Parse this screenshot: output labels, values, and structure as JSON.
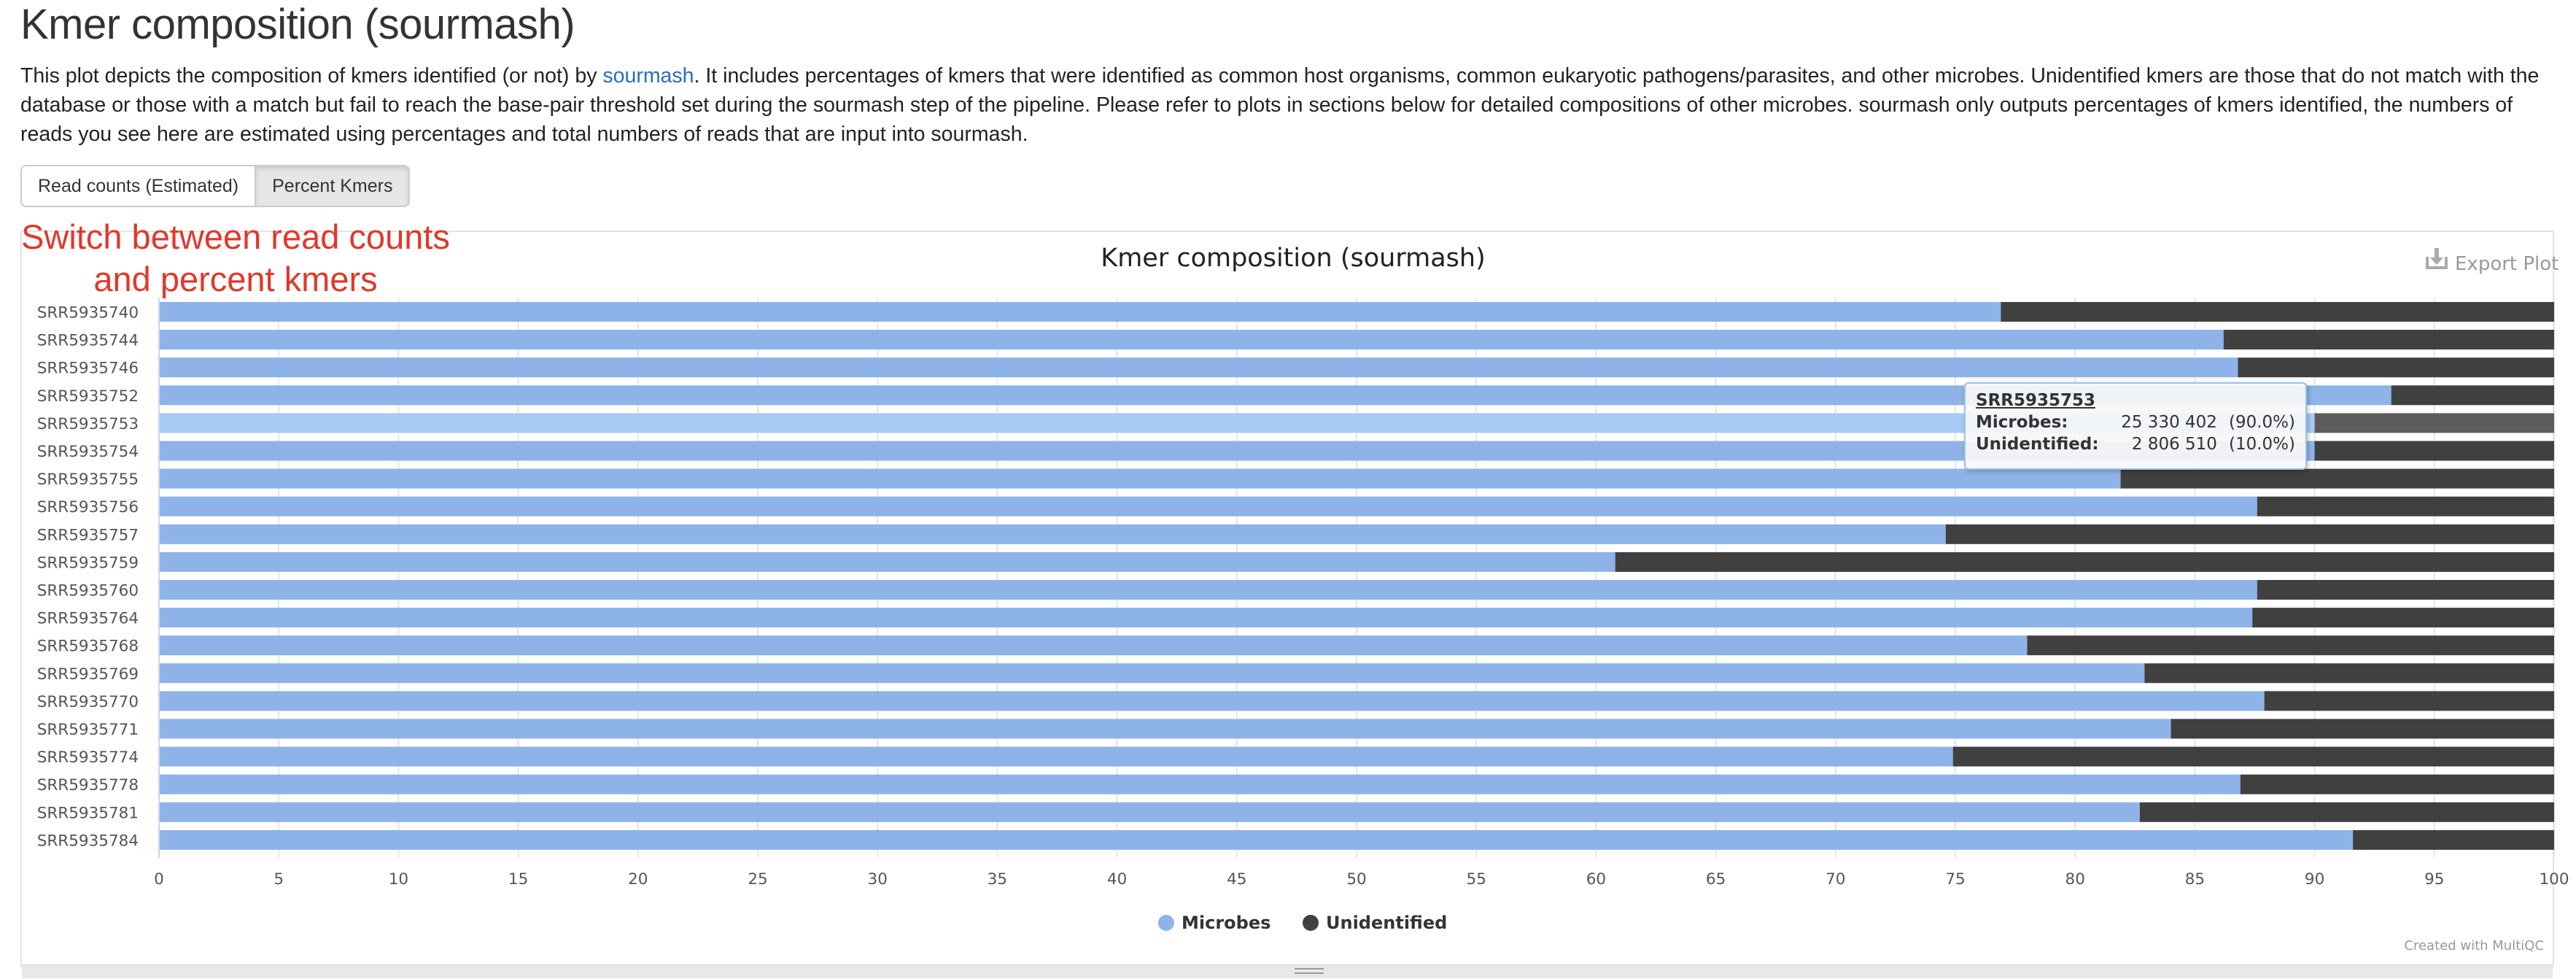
{
  "page": {
    "title": "Kmer composition (sourmash)",
    "description_before_link": "This plot depicts the composition of kmers identified (or not) by ",
    "description_link": "sourmash",
    "description_after_link": ". It includes percentages of kmers that were identified as common host organisms, common eukaryotic pathogens/parasites, and other microbes. Unidentified kmers are those that do not match with the database or those with a match but fail to reach the base-pair threshold set during the sourmash step of the pipeline. Please refer to plots in sections below for detailed compositions of other microbes. sourmash only outputs percentages of kmers identified, the numbers of reads you see here are estimated using percentages and total numbers of reads that are input into sourmash.",
    "buttons": [
      {
        "label": "Read counts (Estimated)",
        "active": false
      },
      {
        "label": "Percent Kmers",
        "active": true
      }
    ],
    "annotation_line1": "Switch between read counts",
    "annotation_line2": "and percent kmers",
    "export_label": "Export Plot",
    "credit": "Created with MultiQC"
  },
  "colors": {
    "microbes": "#8db3e8",
    "microbes_highlight": "#a6cbf5",
    "unidentified": "#404040",
    "unidentified_highlight": "#5c5c5c"
  },
  "chart_data": {
    "type": "bar",
    "orientation": "horizontal",
    "stacked": true,
    "title": "Kmer composition (sourmash)",
    "categories": [
      "SRR5935740",
      "SRR5935744",
      "SRR5935746",
      "SRR5935752",
      "SRR5935753",
      "SRR5935754",
      "SRR5935755",
      "SRR5935756",
      "SRR5935757",
      "SRR5935759",
      "SRR5935760",
      "SRR5935764",
      "SRR5935768",
      "SRR5935769",
      "SRR5935770",
      "SRR5935771",
      "SRR5935774",
      "SRR5935778",
      "SRR5935781",
      "SRR5935784"
    ],
    "series": [
      {
        "name": "Microbes",
        "values": [
          76.9,
          86.2,
          86.8,
          93.2,
          90.0,
          90.0,
          81.9,
          87.6,
          74.6,
          60.8,
          87.6,
          87.4,
          78.0,
          82.9,
          87.9,
          84.0,
          74.9,
          86.9,
          82.7,
          91.6
        ]
      },
      {
        "name": "Unidentified",
        "values": [
          23.1,
          13.8,
          13.2,
          6.8,
          10.0,
          10.0,
          18.1,
          12.4,
          25.4,
          39.2,
          12.4,
          12.6,
          22.0,
          17.1,
          12.1,
          16.0,
          25.1,
          13.1,
          17.3,
          8.4
        ]
      }
    ],
    "xlim": [
      0,
      100
    ],
    "xticks": [
      0,
      5,
      10,
      15,
      20,
      25,
      30,
      35,
      40,
      45,
      50,
      55,
      60,
      65,
      70,
      75,
      80,
      85,
      90,
      95,
      100
    ],
    "grid": true,
    "legend": "bottom-center",
    "highlighted_category": "SRR5935753",
    "tooltip": {
      "title": "SRR5935753",
      "rows": [
        {
          "name": "Microbes:",
          "value": "25 330 402",
          "pct": "(90.0%)"
        },
        {
          "name": "Unidentified:",
          "value": "2 806 510",
          "pct": "(10.0%)"
        }
      ]
    }
  }
}
